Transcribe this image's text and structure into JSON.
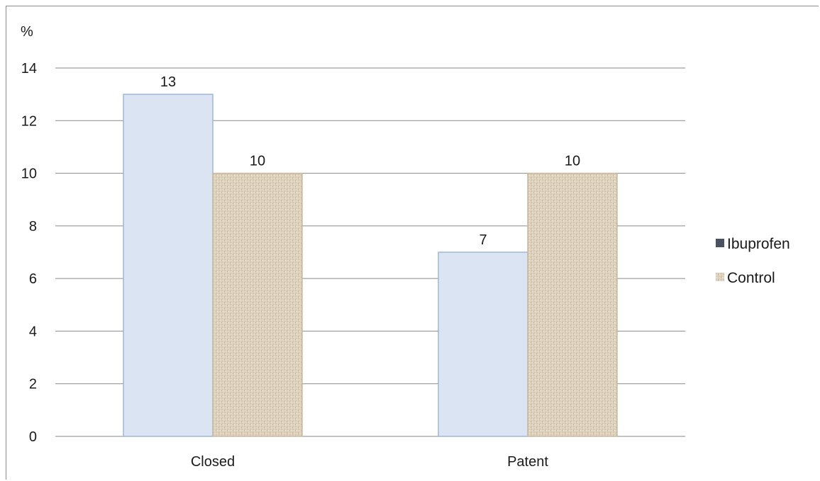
{
  "chart_data": {
    "type": "bar",
    "title": "",
    "ylabel": "%",
    "xlabel": "",
    "categories": [
      "Closed",
      "Patent"
    ],
    "series": [
      {
        "name": "Ibuprofen",
        "values": [
          13,
          7
        ],
        "color": "#dae4f3",
        "stroke": "#9fb6d8",
        "pattern": "solid"
      },
      {
        "name": "Control",
        "values": [
          10,
          10
        ],
        "color": "#ddd2bd",
        "stroke": "#c8bba2",
        "pattern": "burlap"
      }
    ],
    "ylim": [
      0,
      14
    ],
    "yticks": [
      "0",
      "2",
      "4",
      "6",
      "8",
      "10",
      "12",
      "14"
    ],
    "data_labels": true,
    "grid": true,
    "legend_position": "right",
    "legend": [
      {
        "label": "Ibuprofen",
        "swatch_color": "#4a5160"
      },
      {
        "label": "Control",
        "swatch_color": "#d8ccb4"
      }
    ]
  }
}
